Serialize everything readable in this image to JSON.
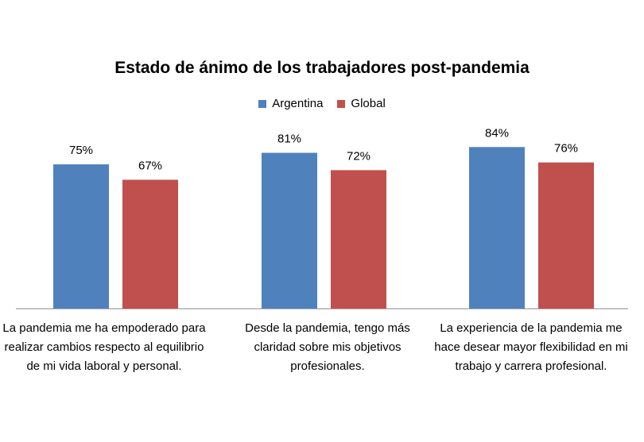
{
  "chart_data": {
    "type": "bar",
    "title": "Estado de ánimo de los trabajadores post-pandemia",
    "categories": [
      "La pandemia me ha empoderado para realizar cambios respecto al equilibrio de mi vida laboral y personal.",
      "Desde la pandemia, tengo más claridad sobre mis objetivos profesionales.",
      "La experiencia de la pandemia me hace desear mayor flexibilidad en mi trabajo y carrera profesional."
    ],
    "series": [
      {
        "name": "Argentina",
        "color": "#4f81bd",
        "values": [
          75,
          81,
          84
        ],
        "labels": [
          "75%",
          "81%",
          "84%"
        ]
      },
      {
        "name": "Global",
        "color": "#c0504d",
        "values": [
          67,
          72,
          76
        ],
        "labels": [
          "67%",
          "72%",
          "76%"
        ]
      }
    ],
    "ylim": [
      0,
      100
    ],
    "unit": "%",
    "xlabel": "",
    "ylabel": "",
    "grid": false,
    "legend_position": "top"
  }
}
